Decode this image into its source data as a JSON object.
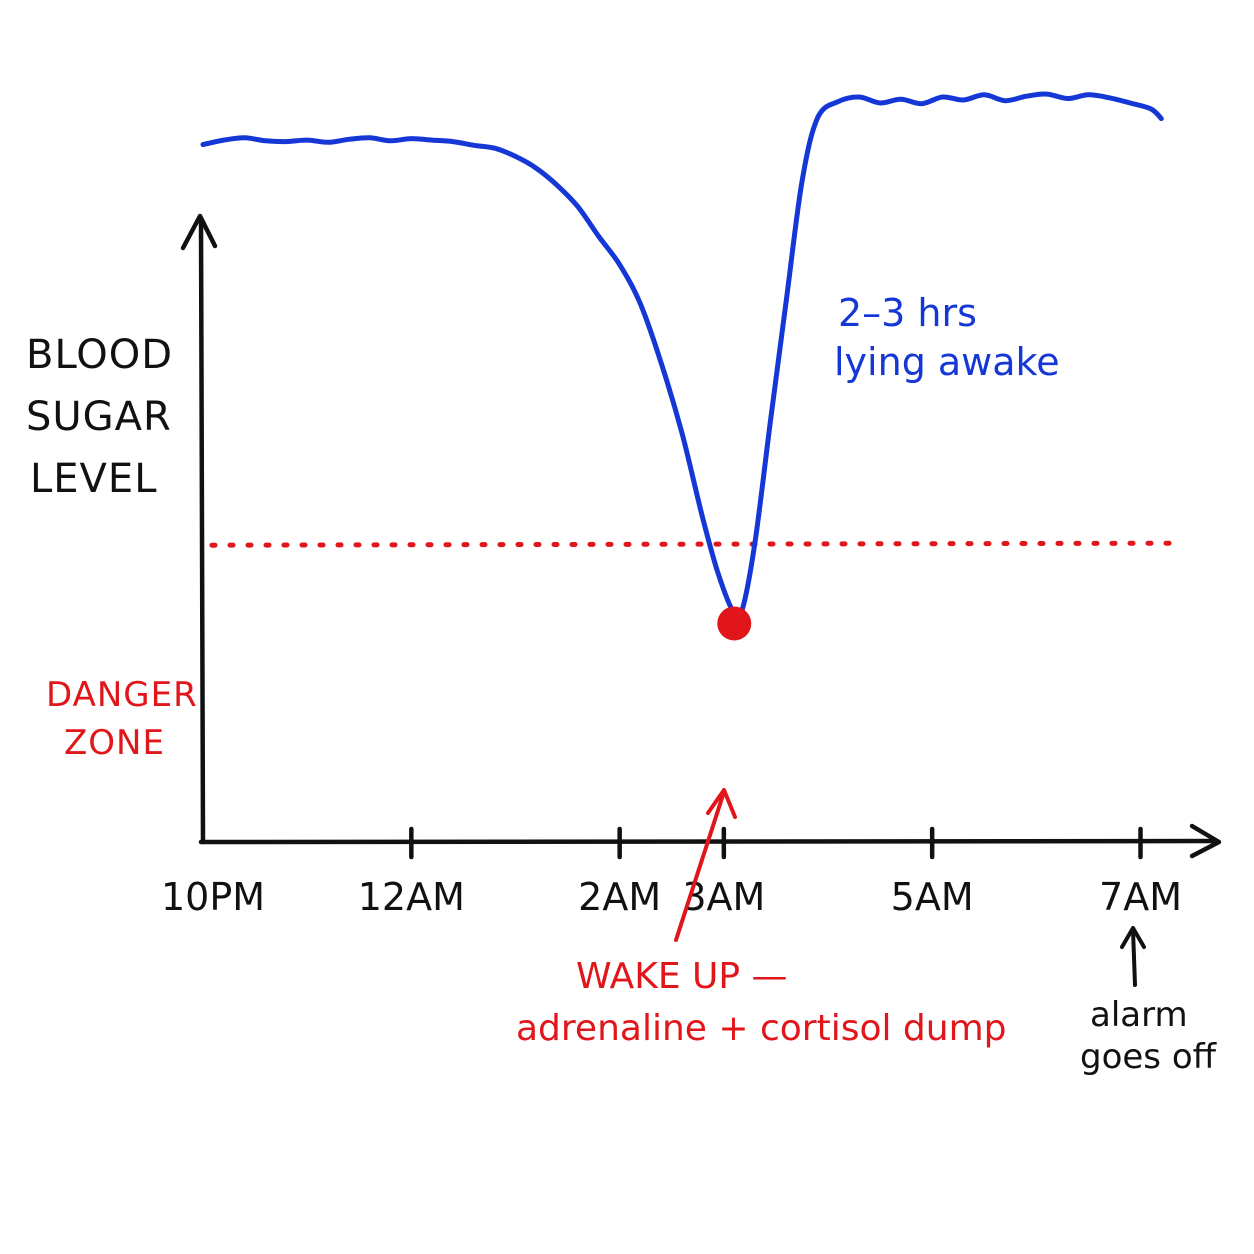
{
  "chart_data": {
    "type": "line",
    "ylabel_lines": [
      "BLOOD",
      "SUGAR",
      "LEVEL"
    ],
    "x_ticks": [
      {
        "label": "10PM",
        "hour": 0
      },
      {
        "label": "12AM",
        "hour": 2
      },
      {
        "label": "2AM",
        "hour": 4
      },
      {
        "label": "3AM",
        "hour": 5
      },
      {
        "label": "5AM",
        "hour": 7
      },
      {
        "label": "7AM",
        "hour": 9
      }
    ],
    "xlim": [
      0,
      9.6
    ],
    "ylim": [
      0,
      100
    ],
    "danger_level": 40,
    "danger_label_lines": [
      "DANGER",
      "ZONE"
    ],
    "series": [
      {
        "color": "#1537d6",
        "points": [
          [
            0,
            94
          ],
          [
            0.2,
            94.6
          ],
          [
            0.4,
            94.9
          ],
          [
            0.6,
            94.5
          ],
          [
            0.8,
            94.4
          ],
          [
            1.0,
            94.6
          ],
          [
            1.2,
            94.3
          ],
          [
            1.4,
            94.7
          ],
          [
            1.6,
            94.9
          ],
          [
            1.8,
            94.5
          ],
          [
            2.0,
            94.8
          ],
          [
            2.2,
            94.6
          ],
          [
            2.4,
            94.4
          ],
          [
            2.6,
            93.9
          ],
          [
            2.8,
            93.5
          ],
          [
            3.0,
            92.4
          ],
          [
            3.2,
            90.8
          ],
          [
            3.4,
            88.5
          ],
          [
            3.6,
            85.6
          ],
          [
            3.8,
            81.6
          ],
          [
            4.0,
            77.8
          ],
          [
            4.2,
            72.5
          ],
          [
            4.4,
            64.5
          ],
          [
            4.6,
            55.0
          ],
          [
            4.8,
            43.5
          ],
          [
            4.95,
            36.0
          ],
          [
            5.1,
            30.8
          ],
          [
            5.18,
            31.5
          ],
          [
            5.3,
            40.5
          ],
          [
            5.45,
            57.0
          ],
          [
            5.6,
            73.0
          ],
          [
            5.75,
            89.0
          ],
          [
            5.9,
            97.6
          ],
          [
            6.1,
            99.8
          ],
          [
            6.3,
            100.4
          ],
          [
            6.5,
            99.6
          ],
          [
            6.7,
            100.1
          ],
          [
            6.9,
            99.5
          ],
          [
            7.1,
            100.4
          ],
          [
            7.3,
            100.0
          ],
          [
            7.5,
            100.7
          ],
          [
            7.7,
            99.9
          ],
          [
            7.9,
            100.5
          ],
          [
            8.1,
            100.8
          ],
          [
            8.3,
            100.2
          ],
          [
            8.5,
            100.7
          ],
          [
            8.7,
            100.3
          ],
          [
            8.9,
            99.6
          ],
          [
            9.1,
            98.8
          ],
          [
            9.2,
            97.5
          ]
        ]
      }
    ],
    "wake_point": {
      "hour": 5.1,
      "value": 30.8
    },
    "annotations": {
      "awake_lines": [
        "2–3 hrs",
        "lying awake"
      ],
      "wake_lines": [
        "WAKE UP —",
        "adrenaline + cortisol dump"
      ],
      "alarm_lines": [
        "alarm",
        "goes off"
      ]
    },
    "colors": {
      "axis": "#111111",
      "line": "#1537d6",
      "danger": "#e0161b",
      "wake_dot": "#e0161b"
    }
  }
}
